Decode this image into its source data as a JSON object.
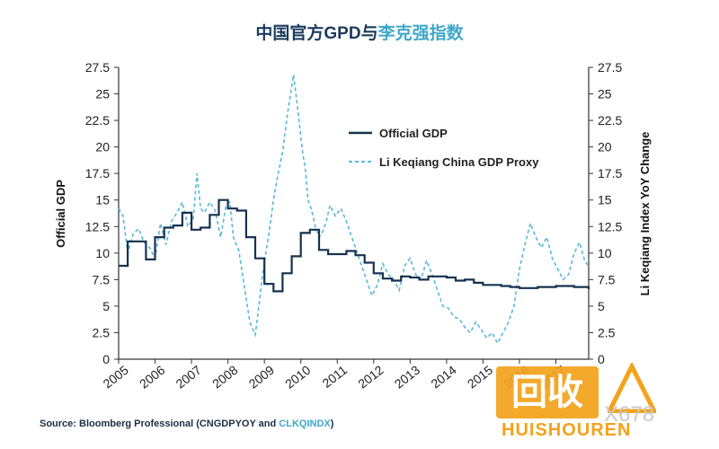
{
  "title": {
    "main": "中国官方GPD与",
    "accent": "李克强指数"
  },
  "source": {
    "prefix": "Source: Bloomberg Professional (CNGDPYOY and ",
    "highlight": "CLKQINDX",
    "suffix": ")"
  },
  "watermark": {
    "logo_text": "回收",
    "brand": "HUISHOUREN",
    "number": "X678"
  },
  "colors": {
    "official": "#16324f",
    "proxy": "#58b8d8",
    "axis": "#333333"
  },
  "chart_data": {
    "type": "line",
    "xlabel": "",
    "ylabel": "Official GDP",
    "ylabel_right": "Li Keqiang Index YoY Change",
    "xlim": [
      2005,
      2017.9
    ],
    "ylim": [
      0,
      27.5
    ],
    "ylim_right": [
      0,
      27.5
    ],
    "x_ticks": [
      "2005",
      "2006",
      "2007",
      "2008",
      "2009",
      "2010",
      "2011",
      "2012",
      "2013",
      "2014",
      "2015",
      "2016",
      "2017"
    ],
    "y_ticks": [
      "0",
      "2.5",
      "5",
      "7.5",
      "10",
      "12.5",
      "15",
      "17.5",
      "20",
      "22.5",
      "25",
      "27.5"
    ],
    "legend_position": "top-right",
    "series": [
      {
        "name": "Official GDP",
        "axis": "left",
        "style": "solid",
        "x": [
          2005.0,
          2005.25,
          2005.5,
          2005.75,
          2006.0,
          2006.25,
          2006.5,
          2006.75,
          2007.0,
          2007.25,
          2007.5,
          2007.75,
          2008.0,
          2008.25,
          2008.5,
          2008.75,
          2009.0,
          2009.25,
          2009.5,
          2009.75,
          2010.0,
          2010.25,
          2010.5,
          2010.75,
          2011.0,
          2011.25,
          2011.5,
          2011.75,
          2012.0,
          2012.25,
          2012.5,
          2012.75,
          2013.0,
          2013.25,
          2013.5,
          2013.75,
          2014.0,
          2014.25,
          2014.5,
          2014.75,
          2015.0,
          2015.25,
          2015.5,
          2015.75,
          2016.0,
          2016.25,
          2016.5,
          2016.75,
          2017.0,
          2017.25,
          2017.5,
          2017.75,
          2017.9
        ],
        "values": [
          8.8,
          11.1,
          11.1,
          9.4,
          11.5,
          12.4,
          12.6,
          13.8,
          12.2,
          12.4,
          13.6,
          15.0,
          14.2,
          14.0,
          11.5,
          9.5,
          7.1,
          6.4,
          8.1,
          9.7,
          11.9,
          12.2,
          10.3,
          9.9,
          9.9,
          10.2,
          9.8,
          9.1,
          8.1,
          7.6,
          7.4,
          7.8,
          7.7,
          7.5,
          7.8,
          7.8,
          7.7,
          7.4,
          7.5,
          7.2,
          7.0,
          7.0,
          6.9,
          6.8,
          6.7,
          6.7,
          6.8,
          6.8,
          6.9,
          6.9,
          6.8,
          6.8,
          6.6
        ]
      },
      {
        "name": "Li Keqiang China GDP Proxy",
        "axis": "right",
        "style": "dashed",
        "x": [
          2005.0,
          2005.12,
          2005.25,
          2005.4,
          2005.55,
          2005.7,
          2005.85,
          2006.0,
          2006.15,
          2006.3,
          2006.45,
          2006.6,
          2006.75,
          2006.9,
          2007.05,
          2007.15,
          2007.25,
          2007.35,
          2007.5,
          2007.65,
          2007.8,
          2007.95,
          2008.05,
          2008.15,
          2008.3,
          2008.45,
          2008.6,
          2008.75,
          2008.85,
          2008.95,
          2009.05,
          2009.15,
          2009.25,
          2009.35,
          2009.5,
          2009.65,
          2009.8,
          2009.9,
          2010.0,
          2010.05,
          2010.12,
          2010.2,
          2010.3,
          2010.4,
          2010.5,
          2010.6,
          2010.7,
          2010.8,
          2010.95,
          2011.1,
          2011.25,
          2011.35,
          2011.5,
          2011.65,
          2011.8,
          2011.95,
          2012.1,
          2012.25,
          2012.4,
          2012.55,
          2012.7,
          2012.85,
          2013.0,
          2013.15,
          2013.3,
          2013.45,
          2013.6,
          2013.75,
          2013.9,
          2014.05,
          2014.2,
          2014.35,
          2014.5,
          2014.65,
          2014.8,
          2014.95,
          2015.1,
          2015.25,
          2015.4,
          2015.55,
          2015.7,
          2015.85,
          2016.0,
          2016.15,
          2016.3,
          2016.45,
          2016.6,
          2016.75,
          2016.9,
          2017.05,
          2017.2,
          2017.35,
          2017.5,
          2017.65,
          2017.8,
          2017.9
        ],
        "values": [
          14.2,
          13.5,
          10.0,
          11.8,
          12.3,
          11.0,
          10.5,
          9.5,
          12.8,
          10.8,
          13.0,
          13.8,
          14.8,
          12.5,
          13.3,
          17.5,
          14.2,
          13.8,
          14.8,
          14.0,
          11.5,
          14.5,
          14.8,
          11.5,
          10.2,
          6.8,
          3.5,
          2.3,
          5.0,
          8.0,
          10.2,
          12.5,
          15.0,
          17.0,
          19.5,
          23.5,
          26.8,
          24.0,
          21.0,
          19.5,
          18.0,
          15.0,
          14.0,
          12.5,
          11.5,
          12.0,
          13.0,
          14.5,
          13.5,
          14.2,
          13.0,
          12.0,
          10.5,
          9.0,
          7.5,
          6.0,
          7.0,
          9.0,
          8.0,
          7.5,
          6.5,
          8.8,
          9.5,
          8.0,
          7.5,
          9.3,
          8.0,
          6.5,
          5.0,
          4.8,
          4.0,
          3.8,
          3.0,
          2.5,
          3.5,
          2.8,
          2.0,
          2.5,
          1.5,
          2.5,
          3.5,
          5.0,
          8.5,
          10.8,
          12.8,
          11.5,
          10.5,
          11.5,
          9.5,
          8.5,
          7.5,
          8.0,
          10.0,
          11.0,
          9.2,
          8.8
        ]
      }
    ]
  }
}
